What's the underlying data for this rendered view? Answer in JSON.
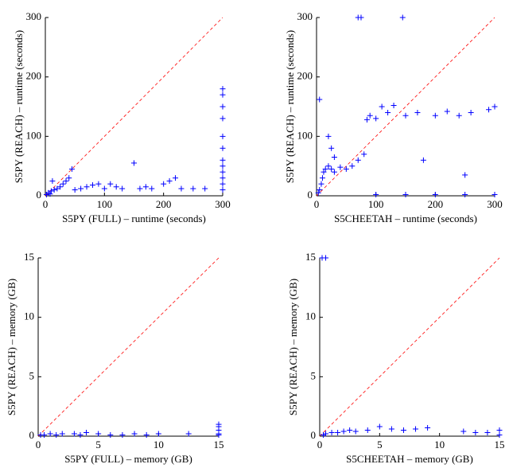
{
  "chart_data": [
    {
      "type": "scatter",
      "x_label": "S5PY (FULL) – runtime (seconds)",
      "y_label": "S5PY (REACH) – runtime (seconds)",
      "xlim": [
        0,
        300
      ],
      "ylim": [
        0,
        300
      ],
      "xticks": [
        0,
        100,
        200,
        300
      ],
      "yticks": [
        0,
        100,
        200,
        300
      ],
      "color": "#0000ff",
      "diagonal_color": "#ff0000",
      "x": [
        2,
        5,
        8,
        10,
        15,
        20,
        25,
        30,
        35,
        40,
        45,
        12,
        50,
        60,
        70,
        80,
        90,
        100,
        110,
        120,
        130,
        150,
        160,
        170,
        180,
        200,
        210,
        220,
        230,
        250,
        270,
        300,
        300,
        300,
        300,
        300,
        300,
        300,
        300,
        300,
        300,
        300,
        300
      ],
      "values": [
        2,
        5,
        3,
        8,
        10,
        12,
        15,
        20,
        25,
        30,
        45,
        25,
        10,
        12,
        15,
        18,
        20,
        12,
        20,
        15,
        12,
        55,
        12,
        15,
        12,
        20,
        25,
        30,
        12,
        12,
        12,
        180,
        170,
        150,
        130,
        100,
        80,
        60,
        50,
        40,
        30,
        20,
        10
      ]
    },
    {
      "type": "scatter",
      "x_label": "S5CHEETAH – runtime (seconds)",
      "y_label": "S5PY (REACH) – runtime (seconds)",
      "xlim": [
        0,
        300
      ],
      "ylim": [
        0,
        300
      ],
      "xticks": [
        0,
        100,
        200,
        300
      ],
      "yticks": [
        0,
        100,
        200,
        300
      ],
      "color": "#0000ff",
      "diagonal_color": "#ff0000",
      "x": [
        70,
        75,
        145,
        5,
        3,
        5,
        8,
        10,
        12,
        15,
        20,
        25,
        30,
        40,
        50,
        60,
        70,
        80,
        85,
        90,
        100,
        110,
        120,
        130,
        150,
        170,
        200,
        220,
        240,
        260,
        290,
        100,
        150,
        200,
        250,
        300,
        300,
        20,
        25,
        30,
        180,
        250
      ],
      "values": [
        300,
        300,
        300,
        162,
        5,
        10,
        20,
        30,
        40,
        45,
        50,
        45,
        40,
        48,
        45,
        50,
        60,
        70,
        128,
        135,
        130,
        150,
        140,
        152,
        135,
        140,
        135,
        142,
        135,
        140,
        145,
        2,
        2,
        2,
        2,
        2,
        150,
        100,
        80,
        65,
        60,
        35
      ]
    },
    {
      "type": "scatter",
      "x_label": "S5PY (FULL) – memory (GB)",
      "y_label": "S5PY (REACH) – memory (GB)",
      "xlim": [
        0,
        15
      ],
      "ylim": [
        0,
        15
      ],
      "xticks": [
        0,
        5,
        10,
        15
      ],
      "yticks": [
        0,
        5,
        10,
        15
      ],
      "color": "#0000ff",
      "diagonal_color": "#ff0000",
      "x": [
        0.2,
        0.5,
        1,
        1.5,
        2,
        3,
        3.5,
        4,
        5,
        6,
        7,
        8,
        9,
        10,
        12.5,
        15,
        15,
        15,
        15,
        15
      ],
      "values": [
        0.1,
        0.1,
        0.2,
        0.1,
        0.2,
        0.2,
        0.1,
        0.3,
        0.2,
        0.1,
        0.1,
        0.2,
        0.1,
        0.2,
        0.2,
        0.2,
        0.5,
        0.8,
        1,
        0.1
      ]
    },
    {
      "type": "scatter",
      "x_label": "S5CHEETAH – memory (GB)",
      "y_label": "S5PY (REACH) – memory (GB)",
      "xlim": [
        0,
        15
      ],
      "ylim": [
        0,
        15
      ],
      "xticks": [
        0,
        5,
        10,
        15
      ],
      "yticks": [
        0,
        5,
        10,
        15
      ],
      "color": "#0000ff",
      "diagonal_color": "#ff0000",
      "x": [
        0.2,
        0.5,
        0.3,
        0.5,
        1,
        1.5,
        2,
        2.5,
        3,
        4,
        5,
        6,
        7,
        8,
        9,
        12,
        13,
        15,
        15,
        14
      ],
      "values": [
        15,
        15,
        0.1,
        0.2,
        0.3,
        0.3,
        0.4,
        0.5,
        0.4,
        0.5,
        0.8,
        0.6,
        0.5,
        0.6,
        0.7,
        0.4,
        0.3,
        0.1,
        0.5,
        0.3
      ]
    }
  ]
}
